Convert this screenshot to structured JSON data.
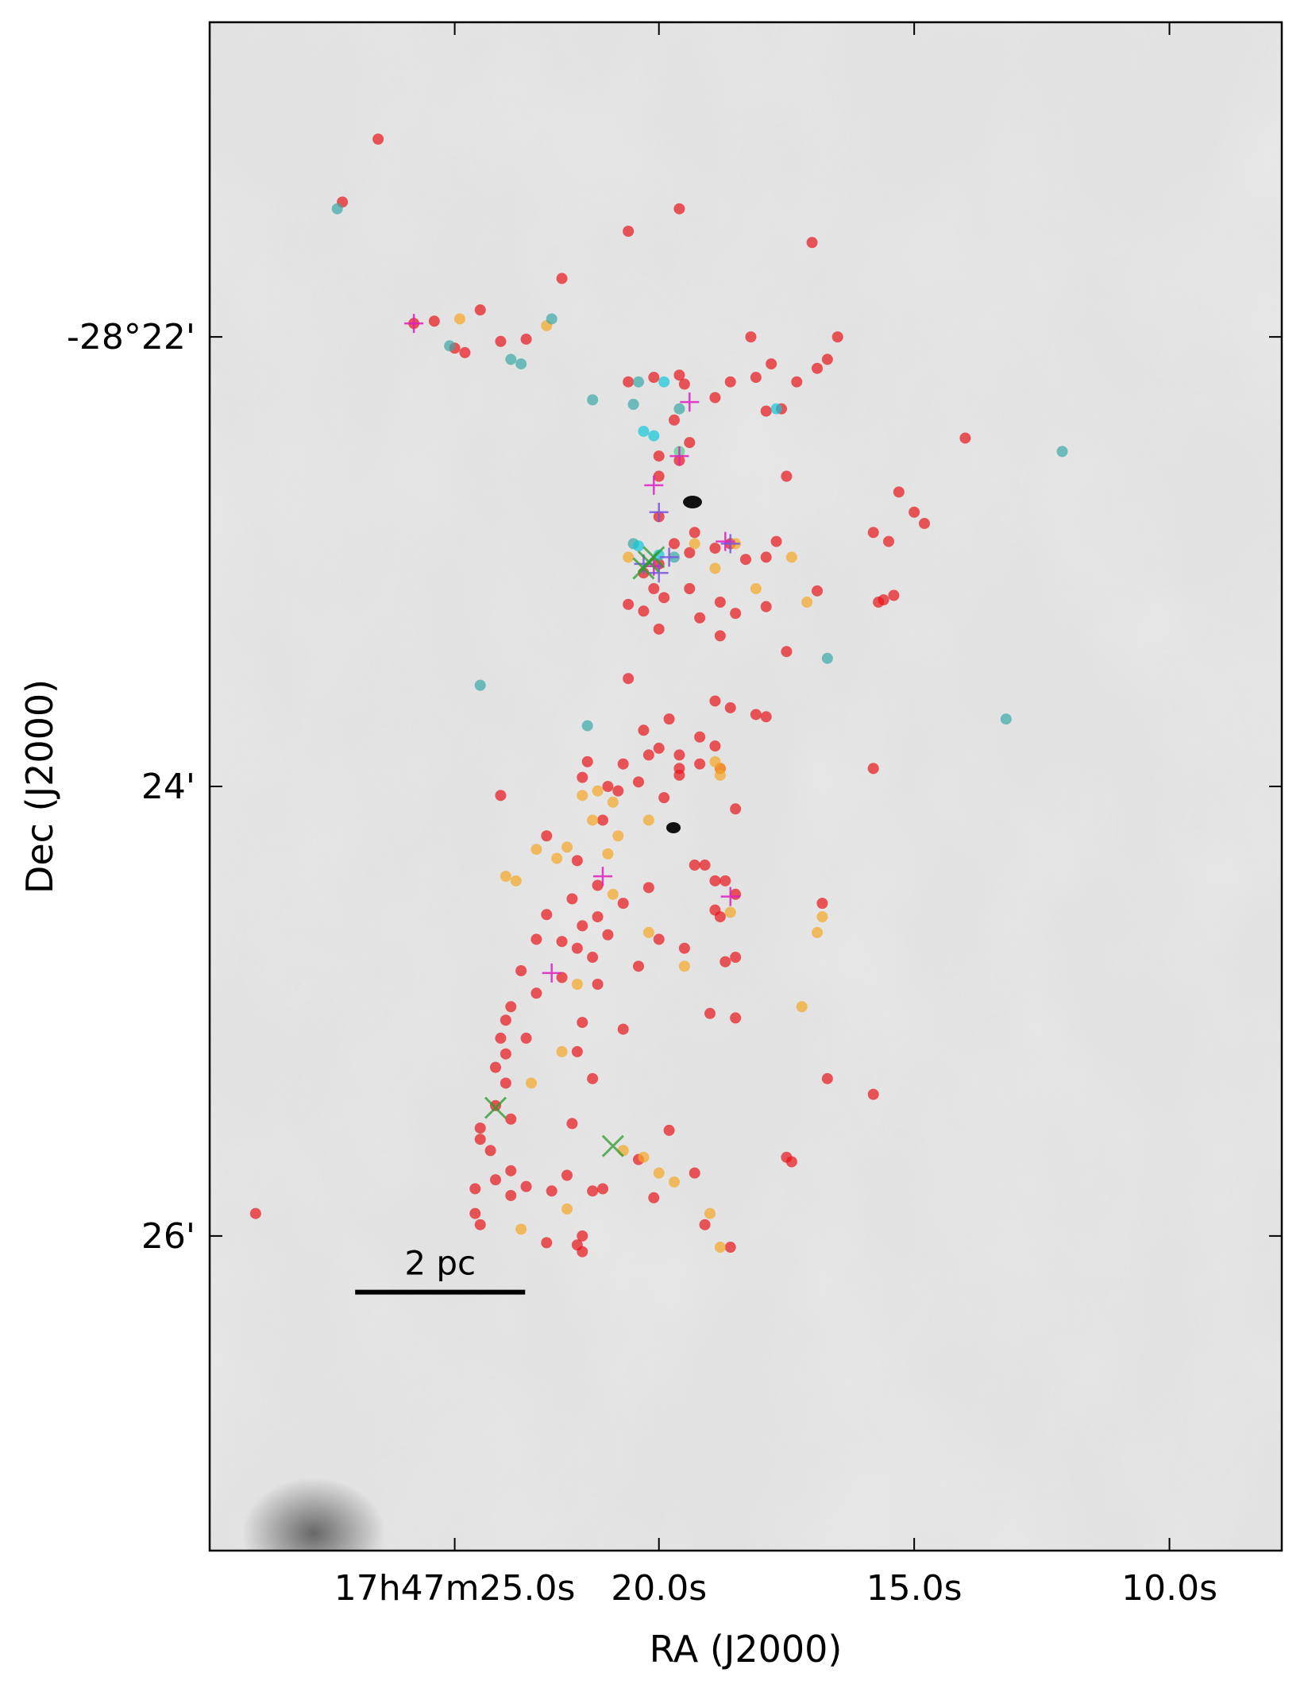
{
  "chart_data": {
    "type": "scatter",
    "xlabel": "RA (J2000)",
    "ylabel": "Dec (J2000)",
    "x_unit": "seconds of RA after 17h47m00s",
    "y_unit": "arcminutes south of -28°20'",
    "xlim": [
      28.8,
      7.8
    ],
    "ylim": [
      20.6,
      27.4
    ],
    "xticks": [
      {
        "value": 24.0,
        "label": "17h47m25.0s"
      },
      {
        "value": 20.0,
        "label": "20.0s"
      },
      {
        "value": 15.0,
        "label": "15.0s"
      },
      {
        "value": 10.0,
        "label": "10.0s"
      }
    ],
    "yticks": [
      {
        "value": 22.0,
        "label": "-28°22'"
      },
      {
        "value": 24.0,
        "label": "24'"
      },
      {
        "value": 26.0,
        "label": "26'"
      }
    ],
    "scale_bar": {
      "label": "2 pc",
      "x_start": 25.95,
      "x_end": 22.62,
      "y": 26.25
    },
    "background": "grayscale dust emission image",
    "colors": {
      "red": "#e8141a",
      "orange": "#f5a623",
      "teal": "#3aa8a8",
      "cyan": "#11c8d8",
      "magenta": "#e020c0",
      "green": "#2e9a2e",
      "purple": "#7a55e0"
    },
    "series": [
      {
        "marker": "circle",
        "color": "#e8141a",
        "points": [
          [
            25.5,
            21.12
          ],
          [
            26.2,
            21.4
          ],
          [
            20.6,
            21.53
          ],
          [
            19.6,
            21.43
          ],
          [
            17.0,
            21.58
          ],
          [
            21.9,
            21.74
          ],
          [
            23.5,
            21.88
          ],
          [
            22.6,
            22.01
          ],
          [
            16.5,
            22.0
          ],
          [
            23.1,
            22.02
          ],
          [
            24.0,
            22.05
          ],
          [
            23.8,
            22.07
          ],
          [
            18.2,
            22.0
          ],
          [
            17.8,
            22.12
          ],
          [
            16.7,
            22.1
          ],
          [
            16.9,
            22.14
          ],
          [
            20.1,
            22.18
          ],
          [
            19.6,
            22.17
          ],
          [
            18.6,
            22.2
          ],
          [
            17.3,
            22.2
          ],
          [
            18.1,
            22.18
          ],
          [
            19.5,
            22.21
          ],
          [
            20.6,
            22.2
          ],
          [
            17.6,
            22.32
          ],
          [
            18.9,
            22.27
          ],
          [
            17.9,
            22.33
          ],
          [
            14.0,
            22.45
          ],
          [
            19.7,
            22.37
          ],
          [
            19.4,
            22.47
          ],
          [
            20.0,
            22.62
          ],
          [
            17.5,
            22.62
          ],
          [
            15.3,
            22.69
          ],
          [
            15.0,
            22.78
          ],
          [
            14.8,
            22.83
          ],
          [
            15.8,
            22.87
          ],
          [
            15.5,
            22.91
          ],
          [
            19.3,
            22.87
          ],
          [
            20.0,
            22.8
          ],
          [
            17.7,
            22.91
          ],
          [
            18.6,
            22.92
          ],
          [
            19.7,
            22.92
          ],
          [
            18.9,
            22.94
          ],
          [
            19.4,
            22.96
          ],
          [
            17.9,
            22.98
          ],
          [
            18.3,
            22.99
          ],
          [
            20.0,
            23.01
          ],
          [
            20.3,
            23.05
          ],
          [
            19.4,
            23.12
          ],
          [
            18.8,
            23.18
          ],
          [
            17.9,
            23.2
          ],
          [
            20.3,
            23.22
          ],
          [
            19.9,
            23.16
          ],
          [
            20.1,
            23.12
          ],
          [
            16.9,
            23.13
          ],
          [
            15.4,
            23.15
          ],
          [
            15.6,
            23.17
          ],
          [
            15.7,
            23.18
          ],
          [
            20.6,
            23.19
          ],
          [
            18.5,
            23.23
          ],
          [
            19.2,
            23.25
          ],
          [
            20.0,
            23.3
          ],
          [
            18.8,
            23.33
          ],
          [
            17.5,
            23.4
          ],
          [
            20.6,
            23.52
          ],
          [
            18.9,
            23.62
          ],
          [
            18.6,
            23.65
          ],
          [
            18.1,
            23.68
          ],
          [
            17.9,
            23.69
          ],
          [
            19.8,
            23.7
          ],
          [
            20.3,
            23.75
          ],
          [
            19.2,
            23.78
          ],
          [
            20.0,
            23.83
          ],
          [
            20.2,
            23.86
          ],
          [
            19.6,
            23.86
          ],
          [
            18.9,
            23.82
          ],
          [
            21.4,
            23.89
          ],
          [
            20.7,
            23.9
          ],
          [
            19.6,
            23.92
          ],
          [
            18.8,
            23.92
          ],
          [
            19.2,
            23.9
          ],
          [
            15.8,
            23.92
          ],
          [
            21.5,
            23.96
          ],
          [
            20.4,
            23.98
          ],
          [
            19.6,
            23.95
          ],
          [
            21.0,
            24.0
          ],
          [
            20.8,
            24.02
          ],
          [
            23.1,
            24.04
          ],
          [
            19.9,
            24.05
          ],
          [
            18.5,
            24.1
          ],
          [
            21.1,
            24.15
          ],
          [
            22.2,
            24.22
          ],
          [
            19.3,
            24.35
          ],
          [
            21.6,
            24.33
          ],
          [
            19.1,
            24.35
          ],
          [
            18.9,
            24.42
          ],
          [
            21.2,
            24.44
          ],
          [
            18.7,
            24.42
          ],
          [
            18.5,
            24.48
          ],
          [
            20.2,
            24.45
          ],
          [
            21.7,
            24.5
          ],
          [
            20.7,
            24.52
          ],
          [
            18.9,
            24.55
          ],
          [
            16.8,
            24.52
          ],
          [
            21.2,
            24.58
          ],
          [
            18.8,
            24.58
          ],
          [
            22.2,
            24.57
          ],
          [
            21.5,
            24.62
          ],
          [
            22.4,
            24.68
          ],
          [
            21.0,
            24.66
          ],
          [
            21.9,
            24.69
          ],
          [
            20.0,
            24.68
          ],
          [
            21.6,
            24.72
          ],
          [
            19.5,
            24.72
          ],
          [
            18.5,
            24.76
          ],
          [
            18.7,
            24.78
          ],
          [
            21.3,
            24.76
          ],
          [
            20.4,
            24.8
          ],
          [
            22.7,
            24.82
          ],
          [
            21.9,
            24.85
          ],
          [
            21.2,
            24.88
          ],
          [
            22.4,
            24.92
          ],
          [
            22.9,
            24.98
          ],
          [
            23.0,
            25.04
          ],
          [
            21.5,
            25.05
          ],
          [
            19.0,
            25.01
          ],
          [
            18.5,
            25.03
          ],
          [
            20.7,
            25.08
          ],
          [
            23.1,
            25.12
          ],
          [
            22.6,
            25.12
          ],
          [
            21.6,
            25.18
          ],
          [
            23.0,
            25.19
          ],
          [
            23.2,
            25.25
          ],
          [
            23.0,
            25.32
          ],
          [
            21.3,
            25.3
          ],
          [
            16.7,
            25.3
          ],
          [
            15.8,
            25.37
          ],
          [
            23.2,
            25.42
          ],
          [
            22.9,
            25.48
          ],
          [
            21.7,
            25.5
          ],
          [
            23.5,
            25.52
          ],
          [
            23.5,
            25.57
          ],
          [
            19.8,
            25.53
          ],
          [
            23.3,
            25.62
          ],
          [
            22.9,
            25.71
          ],
          [
            23.2,
            25.75
          ],
          [
            21.8,
            25.73
          ],
          [
            22.6,
            25.78
          ],
          [
            22.9,
            25.82
          ],
          [
            20.4,
            25.66
          ],
          [
            17.5,
            25.65
          ],
          [
            17.4,
            25.67
          ],
          [
            19.3,
            25.72
          ],
          [
            21.3,
            25.8
          ],
          [
            20.1,
            25.83
          ],
          [
            23.6,
            25.79
          ],
          [
            22.1,
            25.8
          ],
          [
            21.1,
            25.79
          ],
          [
            23.6,
            25.9
          ],
          [
            23.5,
            25.95
          ],
          [
            21.5,
            26.0
          ],
          [
            22.2,
            26.03
          ],
          [
            21.6,
            26.04
          ],
          [
            21.5,
            26.07
          ],
          [
            19.1,
            25.95
          ],
          [
            18.6,
            26.05
          ],
          [
            27.9,
            25.9
          ],
          [
            24.8,
            21.94
          ],
          [
            24.4,
            21.93
          ],
          [
            20.0,
            22.53
          ],
          [
            19.6,
            22.55
          ]
        ]
      },
      {
        "marker": "circle",
        "color": "#f5a623",
        "points": [
          [
            23.9,
            21.92
          ],
          [
            22.2,
            21.95
          ],
          [
            20.6,
            22.98
          ],
          [
            19.3,
            22.92
          ],
          [
            18.5,
            22.92
          ],
          [
            17.4,
            22.98
          ],
          [
            18.9,
            23.03
          ],
          [
            17.1,
            23.18
          ],
          [
            18.1,
            23.12
          ],
          [
            18.9,
            23.89
          ],
          [
            18.8,
            23.92
          ],
          [
            18.8,
            23.95
          ],
          [
            21.5,
            24.04
          ],
          [
            20.9,
            24.07
          ],
          [
            21.2,
            24.02
          ],
          [
            20.2,
            24.15
          ],
          [
            21.3,
            24.15
          ],
          [
            20.8,
            24.22
          ],
          [
            21.8,
            24.27
          ],
          [
            21.0,
            24.3
          ],
          [
            22.4,
            24.28
          ],
          [
            22.0,
            24.32
          ],
          [
            23.0,
            24.4
          ],
          [
            22.8,
            24.42
          ],
          [
            20.9,
            24.48
          ],
          [
            18.6,
            24.56
          ],
          [
            16.8,
            24.58
          ],
          [
            20.2,
            24.65
          ],
          [
            16.9,
            24.65
          ],
          [
            19.5,
            24.8
          ],
          [
            21.6,
            24.88
          ],
          [
            17.2,
            24.98
          ],
          [
            21.9,
            25.18
          ],
          [
            22.5,
            25.32
          ],
          [
            20.7,
            25.62
          ],
          [
            20.3,
            25.65
          ],
          [
            20.0,
            25.72
          ],
          [
            19.7,
            25.76
          ],
          [
            21.8,
            25.88
          ],
          [
            19.0,
            25.9
          ],
          [
            18.8,
            26.05
          ],
          [
            22.7,
            25.97
          ]
        ]
      },
      {
        "marker": "circle",
        "color": "#3aa8a8",
        "points": [
          [
            26.3,
            21.43
          ],
          [
            22.1,
            21.92
          ],
          [
            24.1,
            22.04
          ],
          [
            22.9,
            22.1
          ],
          [
            22.7,
            22.12
          ],
          [
            20.4,
            22.2
          ],
          [
            21.3,
            22.28
          ],
          [
            20.5,
            22.3
          ],
          [
            19.6,
            22.32
          ],
          [
            12.1,
            22.51
          ],
          [
            20.5,
            22.92
          ],
          [
            19.7,
            22.98
          ],
          [
            16.7,
            23.43
          ],
          [
            23.5,
            23.55
          ],
          [
            13.2,
            23.7
          ],
          [
            21.4,
            23.73
          ]
        ]
      },
      {
        "marker": "circle",
        "color": "#11c8d8",
        "points": [
          [
            19.9,
            22.2
          ],
          [
            17.7,
            22.32
          ],
          [
            20.3,
            22.42
          ],
          [
            20.1,
            22.44
          ],
          [
            20.4,
            22.93
          ],
          [
            20.0,
            22.97
          ]
        ]
      },
      {
        "marker": "circle",
        "color": "#4fd08a",
        "points": [
          [
            19.6,
            22.51
          ]
        ]
      },
      {
        "marker": "plus",
        "color": "#e020c0",
        "points": [
          [
            24.8,
            21.94
          ],
          [
            19.4,
            22.29
          ],
          [
            19.6,
            22.53
          ],
          [
            20.1,
            22.66
          ],
          [
            18.7,
            22.91
          ],
          [
            20.1,
            23.02
          ],
          [
            21.1,
            24.4
          ],
          [
            18.6,
            24.49
          ],
          [
            22.1,
            24.83
          ]
        ]
      },
      {
        "marker": "plus",
        "color": "#7a55e0",
        "points": [
          [
            20.0,
            23.05
          ],
          [
            19.8,
            22.98
          ],
          [
            20.3,
            23.01
          ],
          [
            18.6,
            22.92
          ],
          [
            20.0,
            22.78
          ]
        ]
      },
      {
        "marker": "x",
        "color": "#2e9a2e",
        "points": [
          [
            20.3,
            23.03
          ],
          [
            20.1,
            22.98
          ],
          [
            20.2,
            23.0
          ],
          [
            23.2,
            25.43
          ],
          [
            20.9,
            25.6
          ]
        ]
      }
    ]
  }
}
